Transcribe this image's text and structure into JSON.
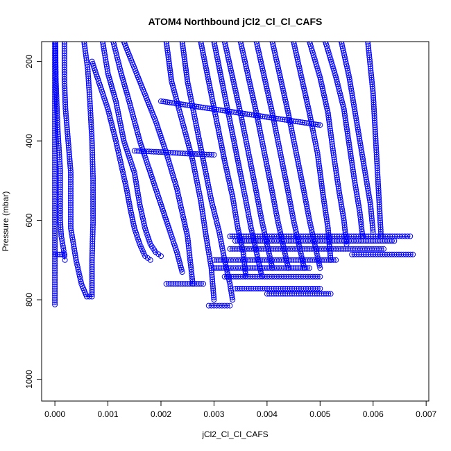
{
  "chart_data": {
    "type": "scatter",
    "title": "ATOM4 Northbound jCl2_Cl_Cl_CAFS",
    "xlabel": "jCl2_Cl_Cl_CAFS",
    "ylabel": "Pressure (mbar)",
    "xlim": [
      -0.00025,
      0.00705
    ],
    "ylim": [
      150,
      1055
    ],
    "y_reversed": true,
    "x_ticks": [
      0.0,
      0.001,
      0.002,
      0.003,
      0.004,
      0.005,
      0.006,
      0.007
    ],
    "x_tick_labels": [
      "0.000",
      "0.001",
      "0.002",
      "0.003",
      "0.004",
      "0.005",
      "0.006",
      "0.007"
    ],
    "y_ticks": [
      200,
      400,
      600,
      800,
      1000
    ],
    "y_tick_labels": [
      "200",
      "400",
      "600",
      "800",
      "1000"
    ],
    "marker": "open-circle",
    "color": "#0000ff",
    "grid": false,
    "legend": "none",
    "profiles": [
      {
        "x": [
          0.0,
          0.0,
          0.0,
          0.0,
          0.0,
          0.0
        ],
        "y": [
          150,
          300,
          500,
          650,
          750,
          812
        ]
      },
      {
        "x": [
          1e-05,
          2e-05,
          5e-05,
          0.0001,
          0.0001,
          0.0001,
          0.00012,
          0.00016,
          0.00018,
          0.00019
        ],
        "y": [
          150,
          250,
          360,
          470,
          540,
          600,
          640,
          670,
          690,
          700
        ]
      },
      {
        "x": [
          1e-05,
          0.00018
        ],
        "y": [
          686,
          686
        ]
      },
      {
        "x": [
          0.00018,
          0.00018,
          0.0002,
          0.00025,
          0.0003,
          0.0003,
          0.0003,
          0.0004,
          0.0005,
          0.0006,
          0.0007,
          0.0007,
          0.00072,
          0.00072,
          0.0007,
          0.00066,
          0.00062,
          0.00055
        ],
        "y": [
          150,
          250,
          320,
          400,
          480,
          550,
          620,
          700,
          760,
          792,
          792,
          700,
          600,
          500,
          400,
          300,
          220,
          150
        ]
      },
      {
        "x": [
          0.0007,
          0.00085,
          0.001,
          0.00115,
          0.00125,
          0.00135,
          0.00142,
          0.0015,
          0.0016,
          0.0017,
          0.0018
        ],
        "y": [
          200,
          260,
          320,
          400,
          460,
          520,
          570,
          620,
          660,
          690,
          700
        ]
      },
      {
        "x": [
          0.0009,
          0.001,
          0.00115,
          0.0013,
          0.0015,
          0.0016,
          0.0017,
          0.0018,
          0.0019,
          0.002
        ],
        "y": [
          150,
          230,
          300,
          400,
          480,
          560,
          620,
          660,
          680,
          690
        ]
      },
      {
        "x": [
          0.0011,
          0.00125,
          0.0014,
          0.0016,
          0.0018,
          0.002,
          0.00215,
          0.0023,
          0.0024
        ],
        "y": [
          150,
          230,
          300,
          400,
          480,
          560,
          620,
          680,
          730
        ]
      },
      {
        "x": [
          0.0013,
          0.0016,
          0.0019,
          0.0021,
          0.0023,
          0.0024,
          0.0025,
          0.00255,
          0.0026
        ],
        "y": [
          150,
          250,
          350,
          430,
          520,
          580,
          640,
          700,
          760
        ]
      },
      {
        "x": [
          0.0021,
          0.0022,
          0.0024,
          0.0026,
          0.00275,
          0.00285,
          0.00295,
          0.003
        ],
        "y": [
          150,
          250,
          350,
          450,
          550,
          640,
          720,
          800
        ]
      },
      {
        "x": [
          0.0024,
          0.0025,
          0.00265,
          0.0028,
          0.00295,
          0.0031,
          0.0032,
          0.0033,
          0.00335
        ],
        "y": [
          150,
          250,
          350,
          450,
          550,
          630,
          700,
          760,
          800
        ]
      },
      {
        "x": [
          0.00275,
          0.0029,
          0.00305,
          0.0032,
          0.00335,
          0.00345,
          0.00355,
          0.0036
        ],
        "y": [
          150,
          250,
          350,
          450,
          540,
          620,
          680,
          740
        ]
      },
      {
        "x": [
          0.003,
          0.00315,
          0.0033,
          0.00345,
          0.0036,
          0.0037,
          0.0038,
          0.0039
        ],
        "y": [
          150,
          250,
          350,
          450,
          550,
          620,
          680,
          740
        ]
      },
      {
        "x": [
          0.0032,
          0.00335,
          0.0035,
          0.00365,
          0.0038,
          0.0039,
          0.004,
          0.0041
        ],
        "y": [
          150,
          240,
          330,
          430,
          530,
          600,
          660,
          720
        ]
      },
      {
        "x": [
          0.0035,
          0.00365,
          0.0038,
          0.00395,
          0.0041,
          0.0042,
          0.0043,
          0.0044
        ],
        "y": [
          150,
          240,
          330,
          430,
          530,
          600,
          660,
          720
        ]
      },
      {
        "x": [
          0.0038,
          0.00395,
          0.0041,
          0.00425,
          0.0044,
          0.0045,
          0.0046,
          0.0047
        ],
        "y": [
          150,
          240,
          330,
          430,
          530,
          600,
          660,
          720
        ]
      },
      {
        "x": [
          0.0041,
          0.00425,
          0.0044,
          0.00455,
          0.0047,
          0.0048,
          0.0049,
          0.005
        ],
        "y": [
          150,
          240,
          330,
          430,
          530,
          600,
          660,
          720
        ]
      },
      {
        "x": [
          0.0045,
          0.00465,
          0.0048,
          0.00495,
          0.00505,
          0.00515,
          0.0052
        ],
        "y": [
          150,
          240,
          330,
          430,
          530,
          620,
          700
        ]
      },
      {
        "x": [
          0.0048,
          0.005,
          0.00515,
          0.00525,
          0.00535,
          0.00545,
          0.0055
        ],
        "y": [
          150,
          240,
          330,
          430,
          520,
          600,
          660
        ]
      },
      {
        "x": [
          0.0051,
          0.0053,
          0.00545,
          0.00555,
          0.00565,
          0.00575,
          0.0058
        ],
        "y": [
          150,
          240,
          320,
          410,
          500,
          580,
          640
        ]
      },
      {
        "x": [
          0.0054,
          0.00555,
          0.00565,
          0.00575,
          0.00585,
          0.00595,
          0.006
        ],
        "y": [
          150,
          240,
          320,
          400,
          480,
          560,
          630
        ]
      },
      {
        "x": [
          0.0059,
          0.006,
          0.00605,
          0.0061,
          0.00615
        ],
        "y": [
          150,
          280,
          400,
          520,
          640
        ]
      },
      {
        "x": [
          0.002,
          0.0025,
          0.003,
          0.0035,
          0.004,
          0.0045,
          0.005
        ],
        "y": [
          300,
          310,
          320,
          330,
          340,
          350,
          360
        ]
      },
      {
        "x": [
          0.0015,
          0.002,
          0.0025,
          0.003
        ],
        "y": [
          425,
          428,
          432,
          435
        ]
      },
      {
        "x": [
          0.0033,
          0.004,
          0.0045,
          0.005,
          0.0055,
          0.006,
          0.0065,
          0.0067
        ],
        "y": [
          640,
          640,
          640,
          640,
          640,
          640,
          640,
          640
        ]
      },
      {
        "x": [
          0.0034,
          0.004,
          0.0045,
          0.005,
          0.0055,
          0.006,
          0.0064
        ],
        "y": [
          652,
          652,
          652,
          652,
          652,
          652,
          652
        ]
      },
      {
        "x": [
          0.0033,
          0.0038,
          0.0043,
          0.0048,
          0.0053,
          0.0058,
          0.0062
        ],
        "y": [
          672,
          672,
          672,
          672,
          672,
          672,
          672
        ]
      },
      {
        "x": [
          0.0056,
          0.006,
          0.0064,
          0.00675
        ],
        "y": [
          686,
          686,
          686,
          686
        ]
      },
      {
        "x": [
          0.003,
          0.0035,
          0.004,
          0.0045,
          0.0049,
          0.0053
        ],
        "y": [
          700,
          700,
          700,
          700,
          700,
          700
        ]
      },
      {
        "x": [
          0.003,
          0.0035,
          0.004,
          0.0045,
          0.0048
        ],
        "y": [
          720,
          720,
          720,
          720,
          720
        ]
      },
      {
        "x": [
          0.0032,
          0.0035,
          0.004,
          0.0045,
          0.005
        ],
        "y": [
          742,
          742,
          742,
          742,
          742
        ]
      },
      {
        "x": [
          0.0021,
          0.0025,
          0.0028
        ],
        "y": [
          760,
          760,
          760
        ]
      },
      {
        "x": [
          0.0034,
          0.0037,
          0.004,
          0.0043,
          0.0046,
          0.005
        ],
        "y": [
          772,
          772,
          772,
          772,
          772,
          772
        ]
      },
      {
        "x": [
          0.004,
          0.0043,
          0.0046,
          0.0049,
          0.0052
        ],
        "y": [
          785,
          785,
          785,
          785,
          785
        ]
      },
      {
        "x": [
          0.0029,
          0.0031,
          0.0033
        ],
        "y": [
          815,
          815,
          815
        ]
      }
    ]
  }
}
